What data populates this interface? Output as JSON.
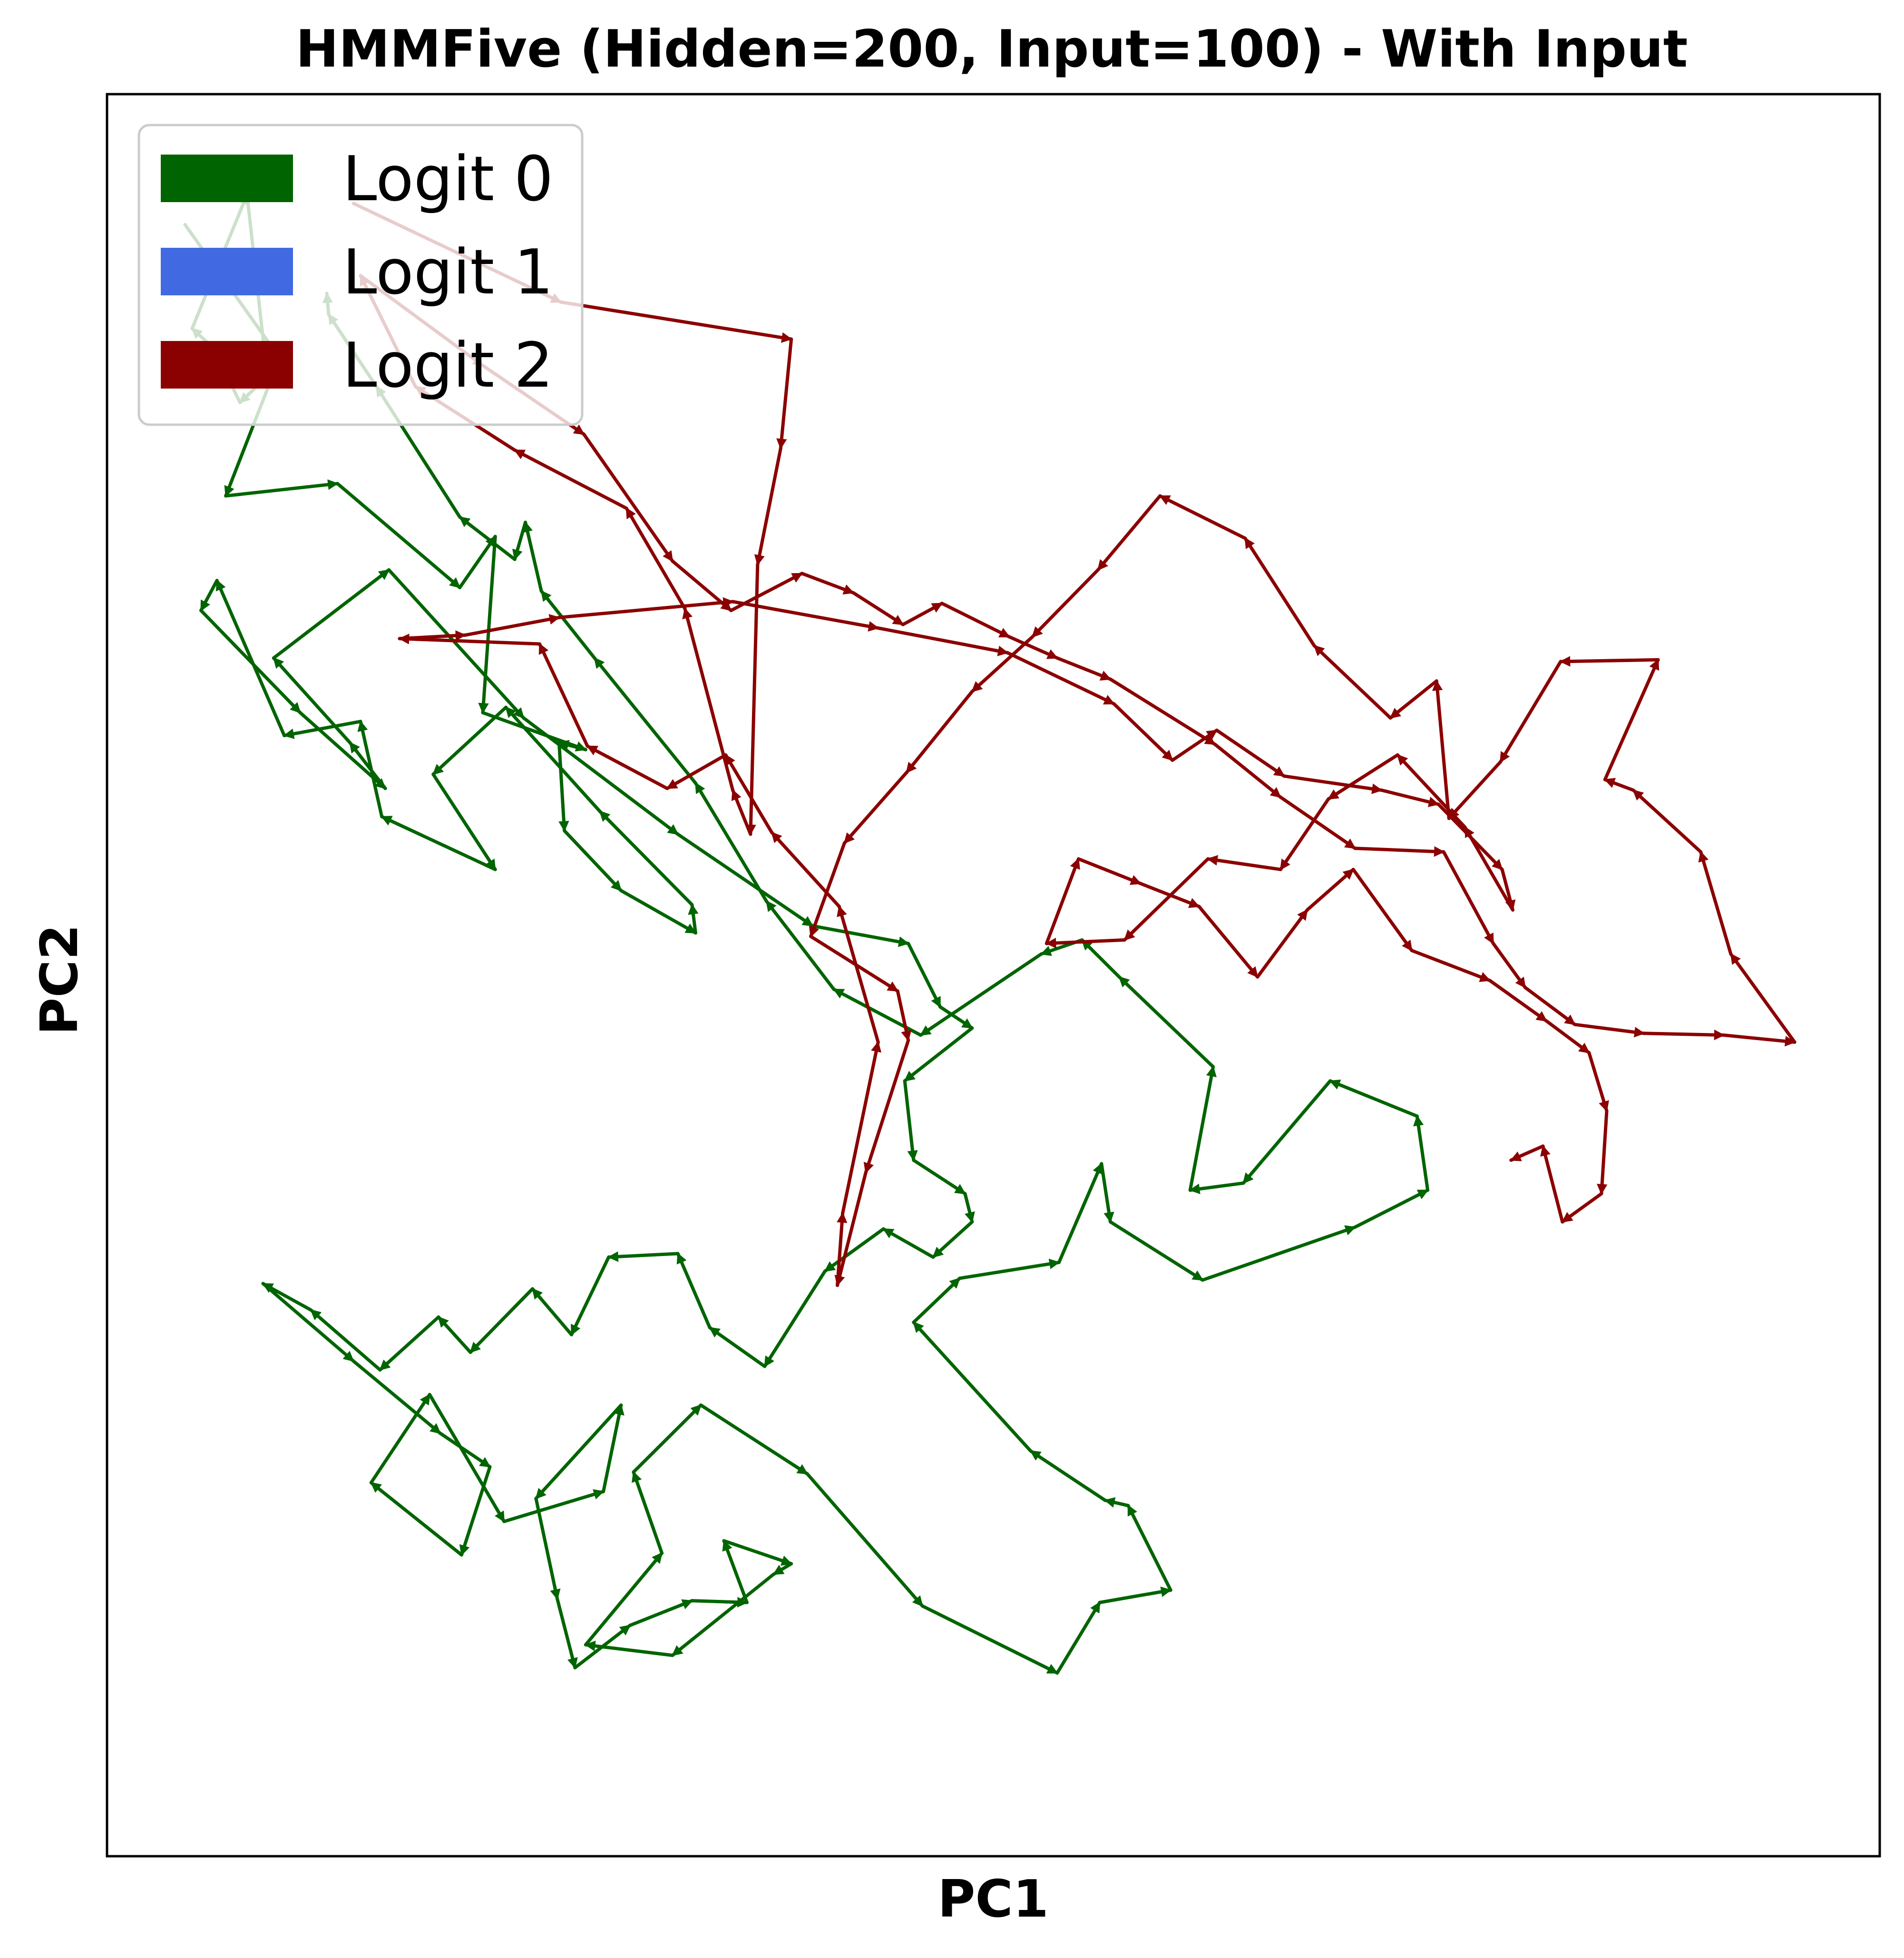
{
  "chart_data": {
    "type": "line",
    "title": "HMMFive (Hidden=200, Input=100) - With Input",
    "xlabel": "PC1",
    "ylabel": "PC2",
    "ticks_shown": false,
    "grid": false,
    "legend_position": "top-left",
    "xlim": [
      0,
      1000
    ],
    "ylim": [
      0,
      1000
    ],
    "series": [
      {
        "name": "Logit 0",
        "color": "#006400",
        "points": [
          [
            44,
            926
          ],
          [
            99,
            848
          ],
          [
            75,
            825
          ],
          [
            60,
            856
          ],
          [
            48,
            867
          ],
          [
            79,
            943
          ],
          [
            91,
            834
          ],
          [
            67,
            772
          ],
          [
            130,
            779
          ],
          [
            199,
            720
          ],
          [
            219,
            749
          ],
          [
            212,
            649
          ],
          [
            270,
            628
          ],
          [
            255,
            632
          ],
          [
            258,
            582
          ],
          [
            290,
            548
          ],
          [
            332,
            524
          ],
          [
            330,
            540
          ],
          [
            278,
            593
          ],
          [
            225,
            652
          ],
          [
            184,
            614
          ],
          [
            219,
            560
          ],
          [
            155,
            590
          ],
          [
            143,
            644
          ],
          [
            100,
            636
          ],
          [
            62,
            724
          ],
          [
            53,
            707
          ],
          [
            109,
            649
          ],
          [
            157,
            606
          ],
          [
            137,
            632
          ],
          [
            94,
            680
          ],
          [
            159,
            730
          ],
          [
            235,
            646
          ],
          [
            322,
            580
          ],
          [
            398,
            528
          ],
          [
            452,
            518
          ],
          [
            470,
            482
          ],
          [
            488,
            470
          ],
          [
            450,
            440
          ],
          [
            455,
            395
          ],
          [
            484,
            376
          ],
          [
            488,
            360
          ],
          [
            466,
            340
          ],
          [
            438,
            356
          ],
          [
            405,
            332
          ],
          [
            371,
            278
          ],
          [
            340,
            300
          ],
          [
            322,
            342
          ],
          [
            283,
            340
          ],
          [
            262,
            296
          ],
          [
            240,
            322
          ],
          [
            205,
            286
          ],
          [
            187,
            306
          ],
          [
            154,
            276
          ],
          [
            115,
            310
          ],
          [
            88,
            325
          ],
          [
            139,
            281
          ],
          [
            188,
            240
          ],
          [
            216,
            221
          ],
          [
            200,
            171
          ],
          [
            149,
            212
          ],
          [
            182,
            262
          ],
          [
            224,
            190
          ],
          [
            280,
            207
          ],
          [
            290,
            256
          ],
          [
            242,
            203
          ],
          [
            254,
            146
          ],
          [
            264,
            107
          ],
          [
            295,
            131
          ],
          [
            330,
            145
          ],
          [
            361,
            144
          ],
          [
            348,
            179
          ],
          [
            386,
            166
          ],
          [
            376,
            160
          ],
          [
            319,
            114
          ],
          [
            270,
            120
          ],
          [
            313,
            172
          ],
          [
            297,
            218
          ],
          [
            335,
            256
          ],
          [
            395,
            217
          ],
          [
            460,
            142
          ],
          [
            536,
            104
          ],
          [
            560,
            144
          ],
          [
            600,
            151
          ],
          [
            576,
            199
          ],
          [
            563,
            202
          ],
          [
            521,
            230
          ],
          [
            455,
            303
          ],
          [
            481,
            328
          ],
          [
            537,
            337
          ],
          [
            561,
            393
          ],
          [
            566,
            360
          ],
          [
            618,
            327
          ],
          [
            704,
            357
          ],
          [
            745,
            378
          ],
          [
            739,
            420
          ],
          [
            690,
            440
          ],
          [
            641,
            382
          ],
          [
            611,
            378
          ],
          [
            624,
            448
          ],
          [
            571,
            499
          ],
          [
            550,
            520
          ],
          [
            527,
            512
          ],
          [
            459,
            466
          ],
          [
            410,
            492
          ],
          [
            372,
            542
          ],
          [
            332,
            609
          ],
          [
            275,
            680
          ],
          [
            245,
            718
          ],
          [
            236,
            757
          ],
          [
            230,
            736
          ],
          [
            199,
            760
          ],
          [
            152,
            834
          ],
          [
            125,
            875
          ],
          [
            124,
            887
          ]
        ]
      },
      {
        "name": "Logit 1",
        "color": "#4169e1",
        "points": []
      },
      {
        "name": "Logit 2",
        "color": "#8b0000",
        "points": [
          [
            139,
            938
          ],
          [
            256,
            882
          ],
          [
            386,
            861
          ],
          [
            380,
            799
          ],
          [
            367,
            733
          ],
          [
            363,
            580
          ],
          [
            353,
            605
          ],
          [
            326,
            708
          ],
          [
            293,
            765
          ],
          [
            230,
            798
          ],
          [
            174,
            834
          ],
          [
            143,
            897
          ],
          [
            212,
            846
          ],
          [
            269,
            807
          ],
          [
            319,
            735
          ],
          [
            352,
            707
          ],
          [
            392,
            728
          ],
          [
            421,
            717
          ],
          [
            449,
            699
          ],
          [
            471,
            711
          ],
          [
            509,
            692
          ],
          [
            536,
            680
          ],
          [
            566,
            668
          ],
          [
            625,
            631
          ],
          [
            662,
            601
          ],
          [
            704,
            572
          ],
          [
            754,
            570
          ],
          [
            782,
            518
          ],
          [
            800,
            493
          ],
          [
            828,
            472
          ],
          [
            867,
            467
          ],
          [
            912,
            466
          ],
          [
            952,
            462
          ],
          [
            916,
            512
          ],
          [
            899,
            570
          ],
          [
            861,
            605
          ],
          [
            845,
            611
          ],
          [
            875,
            679
          ],
          [
            820,
            678
          ],
          [
            786,
            621
          ],
          [
            757,
            589
          ],
          [
            750,
            667
          ],
          [
            724,
            646
          ],
          [
            681,
            687
          ],
          [
            642,
            748
          ],
          [
            594,
            772
          ],
          [
            559,
            730
          ],
          [
            522,
            692
          ],
          [
            488,
            661
          ],
          [
            451,
            615
          ],
          [
            416,
            575
          ],
          [
            397,
            522
          ],
          [
            446,
            491
          ],
          [
            452,
            463
          ],
          [
            428,
            388
          ],
          [
            412,
            324
          ],
          [
            415,
            365
          ],
          [
            435,
            462
          ],
          [
            413,
            539
          ],
          [
            375,
            581
          ],
          [
            349,
            625
          ],
          [
            316,
            606
          ],
          [
            271,
            630
          ],
          [
            244,
            688
          ],
          [
            165,
            691
          ],
          [
            202,
            693
          ],
          [
            255,
            703
          ],
          [
            353,
            712
          ],
          [
            435,
            697
          ],
          [
            508,
            683
          ],
          [
            568,
            654
          ],
          [
            601,
            622
          ],
          [
            626,
            639
          ],
          [
            664,
            613
          ],
          [
            719,
            605
          ],
          [
            751,
            597
          ],
          [
            787,
            560
          ],
          [
            793,
            537
          ],
          [
            766,
            584
          ],
          [
            728,
            625
          ],
          [
            689,
            600
          ],
          [
            662,
            560
          ],
          [
            621,
            566
          ],
          [
            574,
            520
          ],
          [
            530,
            518
          ],
          [
            548,
            566
          ],
          [
            583,
            552
          ],
          [
            616,
            539
          ],
          [
            649,
            499
          ],
          [
            677,
            537
          ],
          [
            703,
            560
          ],
          [
            736,
            514
          ],
          [
            780,
            497
          ],
          [
            812,
            474
          ],
          [
            836,
            456
          ],
          [
            846,
            423
          ],
          [
            843,
            376
          ],
          [
            821,
            360
          ],
          [
            810,
            403
          ],
          [
            792,
            395
          ]
        ]
      }
    ]
  }
}
